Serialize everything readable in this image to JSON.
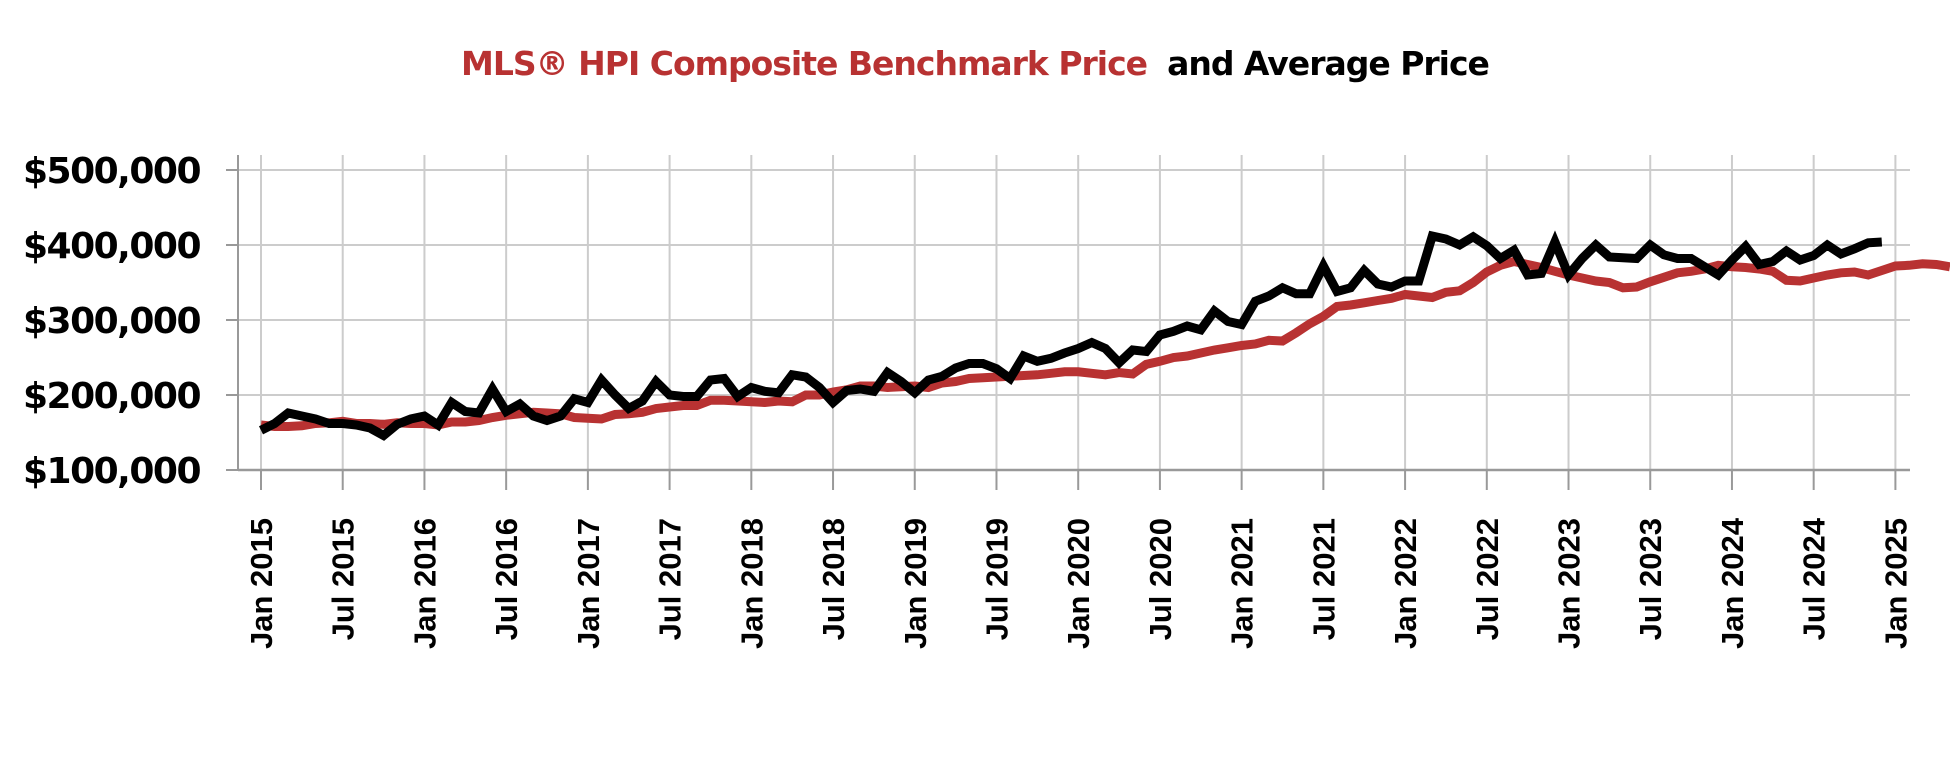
{
  "chart_data": {
    "type": "line",
    "title": {
      "part1": "MLS® HPI Composite Benchmark Price",
      "part2": "and Average Price"
    },
    "xlabel": "",
    "ylabel": "",
    "ylim": [
      100000,
      500000
    ],
    "yticks": [
      100000,
      200000,
      300000,
      400000,
      500000
    ],
    "ytick_labels": [
      "$100,000",
      "$200,000",
      "$300,000",
      "$400,000",
      "$500,000"
    ],
    "xticks": [
      "Jan 2015",
      "Jul 2015",
      "Jan 2016",
      "Jul 2016",
      "Jan 2017",
      "Jul 2017",
      "Jan 2018",
      "Jul 2018",
      "Jan 2019",
      "Jul 2019",
      "Jan 2020",
      "Jul 2020",
      "Jan 2021",
      "Jul 2021",
      "Jan 2022",
      "Jul 2022",
      "Jan 2023",
      "Jul 2023",
      "Jan 2024",
      "Jul 2024",
      "Jan 2025"
    ],
    "x_start": "Jan 2015",
    "x_step": "1 month",
    "grid": true,
    "legend": "none (series identified by title colors)",
    "series": [
      {
        "name": "MLS® HPI Composite Benchmark Price",
        "color": "#b83232",
        "values": [
          160000,
          158000,
          158000,
          159000,
          162000,
          163000,
          165000,
          162000,
          162000,
          161000,
          163000,
          162000,
          162000,
          160000,
          164000,
          164000,
          166000,
          170000,
          173000,
          175000,
          177000,
          176000,
          175000,
          170000,
          169000,
          168000,
          174000,
          175000,
          177000,
          182000,
          184000,
          186000,
          186000,
          193000,
          193000,
          192000,
          191000,
          190000,
          192000,
          191000,
          200000,
          200000,
          204000,
          207000,
          212000,
          212000,
          210000,
          211000,
          212000,
          210000,
          216000,
          218000,
          222000,
          223000,
          224000,
          225000,
          226000,
          227000,
          229000,
          231000,
          231000,
          229000,
          227000,
          230000,
          228000,
          241000,
          245000,
          250000,
          252000,
          256000,
          260000,
          263000,
          266000,
          268000,
          273000,
          272000,
          283000,
          295000,
          305000,
          318000,
          320000,
          323000,
          326000,
          329000,
          334000,
          332000,
          330000,
          337000,
          339000,
          350000,
          364000,
          373000,
          378000,
          374000,
          370000,
          365000,
          360000,
          356000,
          352000,
          350000,
          343000,
          344000,
          351000,
          357000,
          363000,
          365000,
          368000,
          373000,
          371000,
          370000,
          368000,
          365000,
          353000,
          352000,
          356000,
          360000,
          363000,
          364000,
          360000,
          366000,
          372000,
          373000,
          375000,
          374000,
          371000
        ]
      },
      {
        "name": "Average Price",
        "color": "#000000",
        "values": [
          153000,
          162000,
          176000,
          172000,
          168000,
          162000,
          162000,
          160000,
          156000,
          146000,
          161000,
          168000,
          172000,
          160000,
          190000,
          178000,
          176000,
          208000,
          178000,
          188000,
          172000,
          166000,
          172000,
          195000,
          190000,
          220000,
          200000,
          182000,
          192000,
          218000,
          200000,
          198000,
          198000,
          220000,
          222000,
          198000,
          210000,
          205000,
          203000,
          227000,
          224000,
          210000,
          190000,
          206000,
          208000,
          205000,
          230000,
          218000,
          203000,
          220000,
          225000,
          236000,
          242000,
          242000,
          235000,
          222000,
          252000,
          245000,
          249000,
          256000,
          262000,
          270000,
          262000,
          243000,
          260000,
          258000,
          280000,
          285000,
          292000,
          287000,
          312000,
          298000,
          294000,
          325000,
          332000,
          343000,
          335000,
          335000,
          372000,
          338000,
          343000,
          366000,
          348000,
          344000,
          352000,
          352000,
          412000,
          408000,
          400000,
          411000,
          399000,
          382000,
          393000,
          360000,
          362000,
          404000,
          360000,
          382000,
          400000,
          384000,
          383000,
          382000,
          400000,
          387000,
          382000,
          382000,
          371000,
          360000,
          380000,
          398000,
          374000,
          378000,
          392000,
          380000,
          386000,
          400000,
          388000,
          395000,
          403000,
          404000
        ]
      }
    ]
  }
}
